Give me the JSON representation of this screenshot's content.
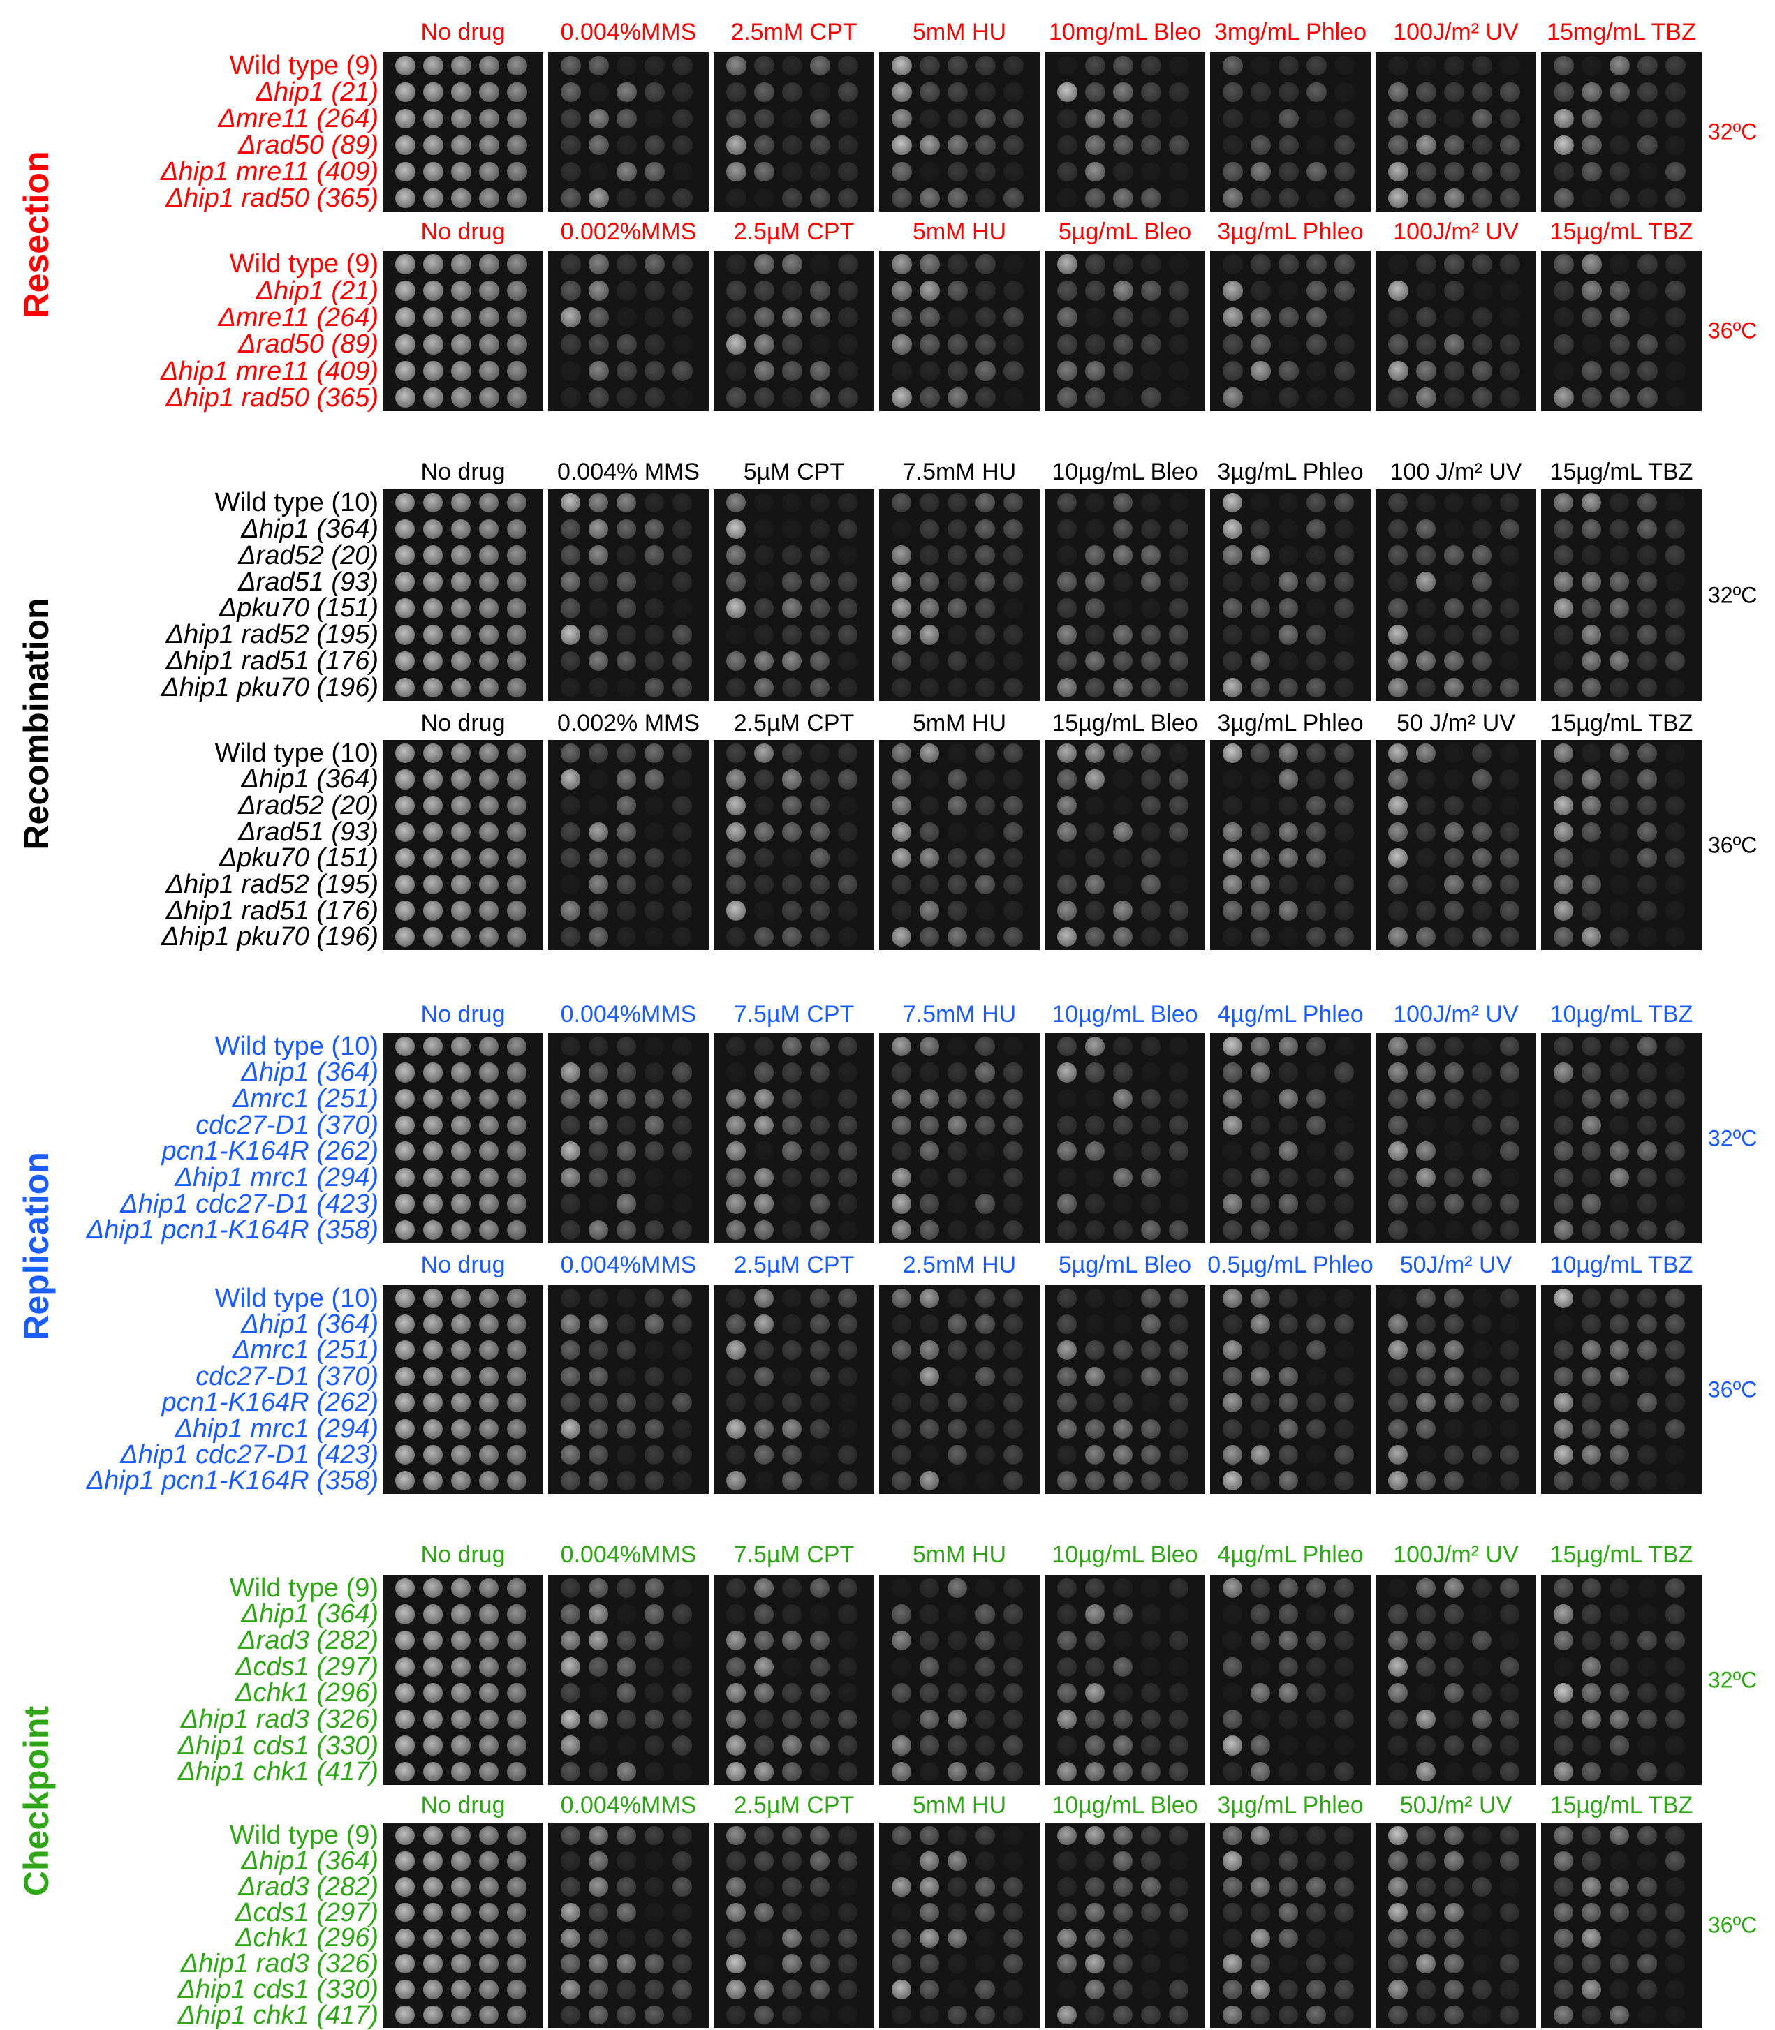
{
  "colors": {
    "resection": "#ff0000",
    "recombination": "#000000",
    "replication": "#1a5cff",
    "checkpoint": "#2ea616"
  },
  "sections": [
    {
      "title": "Resection",
      "color_key": "resection",
      "strains": [
        "Wild type (9)",
        "Δhip1 (21)",
        "Δmre11 (264)",
        "Δrad50 (89)",
        "Δhip1 mre11 (409)",
        "Δhip1 rad50 (365)"
      ],
      "panels": [
        {
          "temp": "32ºC",
          "conditions": [
            "No drug",
            "0.004%MMS",
            "2.5mM CPT",
            "5mM HU",
            "10mg/mL Bleo",
            "3mg/mL Phleo",
            "100J/m² UV",
            "15mg/mL TBZ"
          ]
        },
        {
          "temp": "36ºC",
          "conditions": [
            "No drug",
            "0.002%MMS",
            "2.5µM CPT",
            "5mM HU",
            "5µg/mL Bleo",
            "3µg/mL Phleo",
            "100J/m² UV",
            "15µg/mL TBZ"
          ]
        }
      ]
    },
    {
      "title": "Recombination",
      "color_key": "recombination",
      "strains": [
        "Wild type (10)",
        "Δhip1 (364)",
        "Δrad52 (20)",
        "Δrad51 (93)",
        "Δpku70 (151)",
        "Δhip1 rad52 (195)",
        "Δhip1 rad51 (176)",
        "Δhip1 pku70 (196)"
      ],
      "panels": [
        {
          "temp": "32ºC",
          "conditions": [
            "No drug",
            "0.004% MMS",
            "5µM CPT",
            "7.5mM HU",
            "10µg/mL Bleo",
            "3µg/mL Phleo",
            "100 J/m² UV",
            "15µg/mL TBZ"
          ]
        },
        {
          "temp": "36ºC",
          "conditions": [
            "No drug",
            "0.002% MMS",
            "2.5µM CPT",
            "5mM HU",
            "15µg/mL Bleo",
            "3µg/mL Phleo",
            "50 J/m² UV",
            "15µg/mL TBZ"
          ]
        }
      ]
    },
    {
      "title": "Replication",
      "color_key": "replication",
      "strains": [
        "Wild type (10)",
        "Δhip1 (364)",
        "Δmrc1 (251)",
        "cdc27-D1 (370)",
        "pcn1-K164R (262)",
        "Δhip1 mrc1 (294)",
        "Δhip1 cdc27-D1 (423)",
        "Δhip1 pcn1-K164R (358)"
      ],
      "panels": [
        {
          "temp": "32ºC",
          "conditions": [
            "No drug",
            "0.004%MMS",
            "7.5µM CPT",
            "7.5mM HU",
            "10µg/mL Bleo",
            "4µg/mL Phleo",
            "100J/m² UV",
            "10µg/mL TBZ"
          ]
        },
        {
          "temp": "36ºC",
          "conditions": [
            "No drug",
            "0.004%MMS",
            "2.5µM CPT",
            "2.5mM HU",
            "5µg/mL Bleo",
            "0.5µg/mL Phleo",
            "50J/m² UV",
            "10µg/mL TBZ"
          ]
        }
      ]
    },
    {
      "title": "Checkpoint",
      "color_key": "checkpoint",
      "strains": [
        "Wild type (9)",
        "Δhip1 (364)",
        "Δrad3 (282)",
        "Δcds1 (297)",
        "Δchk1 (296)",
        "Δhip1 rad3 (326)",
        "Δhip1 cds1 (330)",
        "Δhip1 chk1 (417)"
      ],
      "panels": [
        {
          "temp": "32ºC",
          "conditions": [
            "No drug",
            "0.004%MMS",
            "7.5µM CPT",
            "5mM HU",
            "10µg/mL Bleo",
            "4µg/mL Phleo",
            "100J/m² UV",
            "15µg/mL TBZ"
          ]
        },
        {
          "temp": "36ºC",
          "conditions": [
            "No drug",
            "0.004%MMS",
            "2.5µM CPT",
            "5mM HU",
            "10µg/mL Bleo",
            "3µg/mL Phleo",
            "50J/m² UV",
            "15µg/mL TBZ"
          ]
        }
      ]
    }
  ]
}
